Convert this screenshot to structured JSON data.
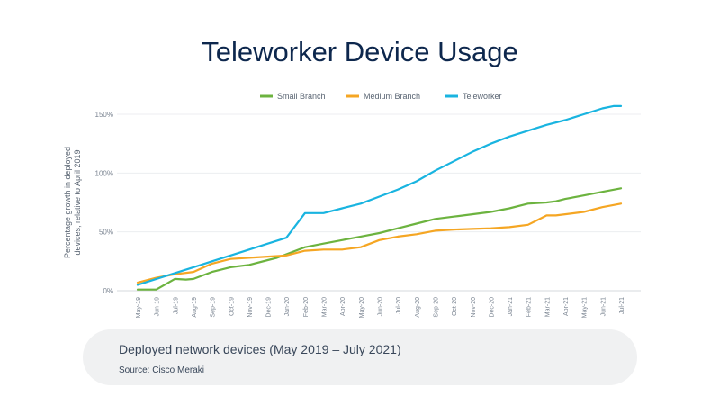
{
  "chart_data": {
    "type": "line",
    "title": "Teleworker Device Usage",
    "ylabel": "Percentage growth in deployed devices, relative to April 2019",
    "ylim": [
      0,
      150
    ],
    "yticks": [
      {
        "value": 0,
        "label": "0%"
      },
      {
        "value": 50,
        "label": "50%"
      },
      {
        "value": 100,
        "label": "100%"
      },
      {
        "value": 150,
        "label": "150%"
      }
    ],
    "grid": true,
    "legend_position": "top-center",
    "categories": [
      "May-19",
      "Jun-19",
      "Jul-19",
      "Aug-19",
      "Sep-19",
      "Oct-19",
      "Nov-19",
      "Dec-19",
      "Jan-20",
      "Feb-20",
      "Mar-20",
      "Apr-20",
      "May-20",
      "Jun-20",
      "Jul-20",
      "Aug-20",
      "Sep-20",
      "Oct-20",
      "Nov-20",
      "Dec-20",
      "Jan-21",
      "Feb-21",
      "Mar-21",
      "Apr-21",
      "May-21",
      "Jun-21",
      "Jul-21"
    ],
    "x": [
      0,
      1,
      2,
      2.3,
      2.6,
      3,
      4,
      5,
      6,
      7,
      7.5,
      8,
      9,
      9.4,
      10,
      10.4,
      11,
      12,
      13,
      14,
      15,
      15.3,
      15.6,
      16,
      17,
      18,
      19,
      20,
      21,
      22,
      23,
      24,
      25,
      26
    ],
    "series": [
      {
        "name": "Small Branch",
        "color": "#6cb33f",
        "x": [
          0,
          1,
          2,
          2.6,
          3,
          4,
          5,
          6,
          7,
          7.5,
          8,
          9,
          10,
          11,
          12,
          13,
          14,
          15,
          16,
          17,
          18,
          19,
          20,
          21,
          22,
          22.5,
          23,
          24,
          25,
          26
        ],
        "values": [
          1,
          1,
          10,
          9.5,
          10,
          16,
          20,
          22,
          26,
          28,
          31,
          37,
          40,
          43,
          46,
          49,
          53,
          57,
          61,
          63,
          65,
          67,
          70,
          74,
          75,
          76,
          78,
          81,
          84,
          87
        ]
      },
      {
        "name": "Medium Branch",
        "color": "#f5a623",
        "x": [
          0,
          1,
          2,
          3,
          4,
          5,
          6,
          7,
          8,
          9,
          10,
          11,
          12,
          13,
          14,
          15,
          16,
          17,
          18,
          19,
          20,
          21,
          21.5,
          22,
          22.5,
          23,
          24,
          25,
          26
        ],
        "values": [
          7,
          11,
          14,
          16,
          23,
          27,
          28,
          29,
          30,
          34,
          35,
          35,
          37,
          43,
          46,
          48,
          51,
          52,
          52.5,
          53,
          54,
          56,
          60,
          64,
          64,
          65,
          67,
          71,
          74
        ]
      },
      {
        "name": "Teleworker",
        "color": "#19b4e0",
        "x": [
          0,
          1,
          2,
          3,
          4,
          5,
          6,
          7,
          8,
          9,
          9.5,
          10,
          11,
          12,
          13,
          14,
          15,
          16,
          17,
          18,
          19,
          20,
          21,
          22,
          23,
          24,
          25,
          25.6,
          26
        ],
        "values": [
          5,
          10,
          15,
          20,
          25,
          30,
          35,
          40,
          45,
          66,
          66,
          66,
          70,
          74,
          80,
          86,
          93,
          102,
          110,
          118,
          125,
          131,
          136,
          141,
          145,
          150,
          155,
          157,
          157
        ]
      }
    ]
  },
  "caption": {
    "main": "Deployed network devices (May 2019 – July 2021)",
    "source": "Source: Cisco Meraki"
  }
}
